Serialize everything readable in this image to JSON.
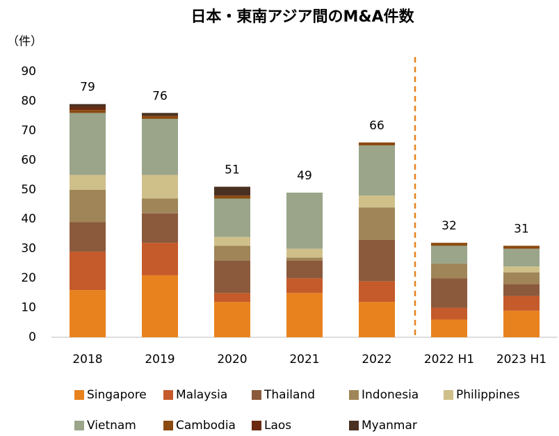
{
  "chart_data": {
    "type": "stacked_bar",
    "title": "日本・東南アジア間のM&A件数",
    "y_label": "（件）",
    "categories": [
      "2018",
      "2019",
      "2020",
      "2021",
      "2022",
      "2022 H1",
      "2023 H1"
    ],
    "series": [
      {
        "name": "Singapore",
        "color": "#e8821e",
        "values": [
          16,
          21,
          12,
          15,
          12,
          6,
          9
        ]
      },
      {
        "name": "Malaysia",
        "color": "#c55a2b",
        "values": [
          13,
          11,
          3,
          5,
          7,
          4,
          5
        ]
      },
      {
        "name": "Thailand",
        "color": "#8b5a3c",
        "values": [
          10,
          10,
          11,
          6,
          14,
          10,
          4
        ]
      },
      {
        "name": "Indonesia",
        "color": "#a08558",
        "values": [
          11,
          5,
          5,
          1,
          11,
          5,
          4
        ]
      },
      {
        "name": "Philippines",
        "color": "#cfc08a",
        "values": [
          5,
          8,
          3,
          3,
          4,
          0,
          2
        ]
      },
      {
        "name": "Vietnam",
        "color": "#9aa58a",
        "values": [
          21,
          19,
          13,
          19,
          17,
          6,
          6
        ]
      },
      {
        "name": "Cambodia",
        "color": "#8b4a10",
        "values": [
          1,
          1,
          1,
          0,
          1,
          1,
          1
        ]
      },
      {
        "name": "Laos",
        "color": "#6b2a10",
        "values": [
          1,
          0,
          0,
          0,
          0,
          0,
          0
        ]
      },
      {
        "name": "Myanmar",
        "color": "#4a3020",
        "values": [
          1,
          1,
          3,
          0,
          0,
          0,
          0
        ]
      }
    ],
    "totals": [
      79,
      76,
      51,
      49,
      66,
      32,
      31
    ],
    "ylim": [
      0,
      90
    ],
    "yticks": [
      0,
      10,
      20,
      30,
      40,
      50,
      60,
      70,
      80,
      90
    ],
    "grid": false
  }
}
